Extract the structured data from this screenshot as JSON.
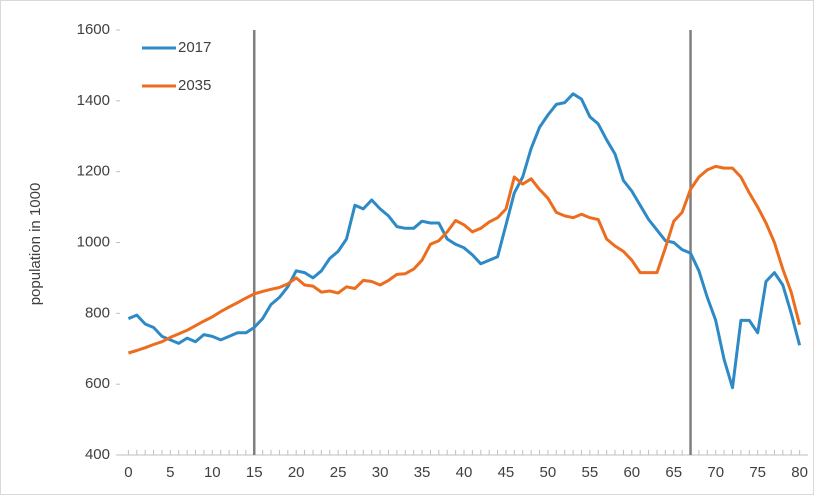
{
  "chart_data": {
    "type": "line",
    "y_label": "population in 1000",
    "x": [
      0,
      1,
      2,
      3,
      4,
      5,
      6,
      7,
      8,
      9,
      10,
      11,
      12,
      13,
      14,
      15,
      16,
      17,
      18,
      19,
      20,
      21,
      22,
      23,
      24,
      25,
      26,
      27,
      28,
      29,
      30,
      31,
      32,
      33,
      34,
      35,
      36,
      37,
      38,
      39,
      40,
      41,
      42,
      43,
      44,
      45,
      46,
      47,
      48,
      49,
      50,
      51,
      52,
      53,
      54,
      55,
      56,
      57,
      58,
      59,
      60,
      61,
      62,
      63,
      64,
      65,
      66,
      67,
      68,
      69,
      70,
      71,
      72,
      73,
      74,
      75,
      76,
      77,
      78,
      79,
      80
    ],
    "series": [
      {
        "name": "2017",
        "color": "#2e8ac6",
        "values": [
          785,
          795,
          770,
          760,
          735,
          725,
          715,
          730,
          720,
          740,
          735,
          725,
          735,
          745,
          745,
          760,
          785,
          825,
          845,
          875,
          920,
          915,
          900,
          920,
          955,
          975,
          1010,
          1105,
          1095,
          1120,
          1095,
          1075,
          1045,
          1040,
          1040,
          1060,
          1055,
          1055,
          1010,
          995,
          985,
          965,
          940,
          950,
          960,
          1050,
          1140,
          1185,
          1265,
          1325,
          1360,
          1390,
          1395,
          1420,
          1405,
          1355,
          1335,
          1290,
          1250,
          1175,
          1145,
          1105,
          1065,
          1035,
          1005,
          1000,
          980,
          970,
          920,
          845,
          780,
          670,
          590,
          780,
          780,
          745,
          890,
          915,
          880,
          800,
          710
        ]
      },
      {
        "name": "2035",
        "color": "#ed6d1f",
        "values": [
          688,
          695,
          703,
          712,
          720,
          732,
          742,
          752,
          765,
          778,
          790,
          805,
          818,
          830,
          843,
          855,
          862,
          868,
          873,
          883,
          900,
          880,
          877,
          860,
          863,
          857,
          875,
          870,
          893,
          890,
          880,
          893,
          910,
          912,
          925,
          950,
          995,
          1005,
          1030,
          1062,
          1050,
          1030,
          1040,
          1058,
          1070,
          1095,
          1185,
          1165,
          1180,
          1150,
          1125,
          1085,
          1075,
          1070,
          1080,
          1070,
          1065,
          1010,
          990,
          975,
          950,
          915,
          915,
          915,
          985,
          1060,
          1085,
          1150,
          1185,
          1205,
          1215,
          1210,
          1210,
          1185,
          1140,
          1100,
          1055,
          1000,
          925,
          860,
          768
        ]
      }
    ],
    "reference_lines": [
      15,
      67
    ],
    "xlim": [
      -1,
      81
    ],
    "xticks": [
      0,
      5,
      10,
      15,
      20,
      25,
      30,
      35,
      40,
      45,
      50,
      55,
      60,
      65,
      70,
      75,
      80
    ],
    "ylim": [
      400,
      1600
    ],
    "yticks": [
      400,
      600,
      800,
      1000,
      1200,
      1400,
      1600
    ],
    "legend": "top-left"
  }
}
